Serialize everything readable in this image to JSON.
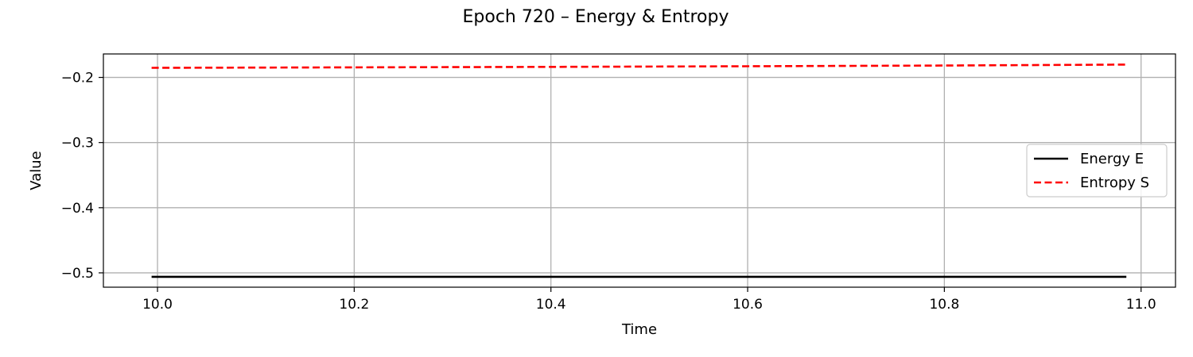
{
  "chart_data": {
    "type": "line",
    "title": "Epoch 720 – Energy & Entropy",
    "xlabel": "Time",
    "ylabel": "Value",
    "xlim": [
      9.945,
      11.035
    ],
    "ylim": [
      -0.522,
      -0.164
    ],
    "xticks": [
      10.0,
      10.2,
      10.4,
      10.6,
      10.8,
      11.0
    ],
    "xtick_labels": [
      "10.0",
      "10.2",
      "10.4",
      "10.6",
      "10.8",
      "11.0"
    ],
    "yticks": [
      -0.2,
      -0.3,
      -0.4,
      -0.5
    ],
    "ytick_labels": [
      "−0.2",
      "−0.3",
      "−0.4",
      "−0.5"
    ],
    "grid": true,
    "legend_position": "center-right",
    "series": [
      {
        "name": "Energy E",
        "color": "#000000",
        "style": "solid",
        "x": [
          9.994,
          10.2,
          10.4,
          10.6,
          10.8,
          10.985
        ],
        "y": [
          -0.506,
          -0.506,
          -0.506,
          -0.506,
          -0.506,
          -0.506
        ]
      },
      {
        "name": "Entropy S",
        "color": "#ff0000",
        "style": "dashed",
        "x": [
          9.994,
          10.2,
          10.4,
          10.6,
          10.8,
          10.985
        ],
        "y": [
          -0.1853,
          -0.1846,
          -0.1838,
          -0.1829,
          -0.1818,
          -0.1803
        ]
      }
    ]
  }
}
